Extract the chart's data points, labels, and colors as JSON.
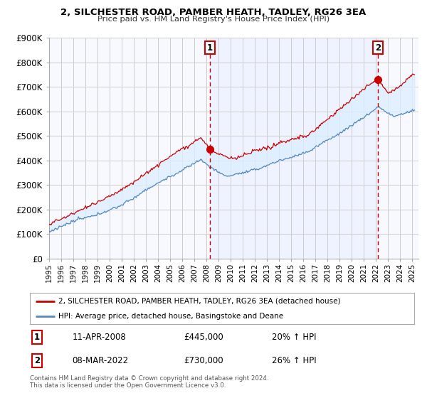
{
  "title": "2, SILCHESTER ROAD, PAMBER HEATH, TADLEY, RG26 3EA",
  "subtitle": "Price paid vs. HM Land Registry's House Price Index (HPI)",
  "ylabel_ticks": [
    "£0",
    "£100K",
    "£200K",
    "£300K",
    "£400K",
    "£500K",
    "£600K",
    "£700K",
    "£800K",
    "£900K"
  ],
  "ytick_vals": [
    0,
    100000,
    200000,
    300000,
    400000,
    500000,
    600000,
    700000,
    800000,
    900000
  ],
  "ylim": [
    0,
    900000
  ],
  "xlim_start": 1995.0,
  "xlim_end": 2025.5,
  "sale1_x": 2008.28,
  "sale1_y": 445000,
  "sale2_x": 2022.17,
  "sale2_y": 730000,
  "vline1_x": 2008.28,
  "vline2_x": 2022.17,
  "legend_line1": "2, SILCHESTER ROAD, PAMBER HEATH, TADLEY, RG26 3EA (detached house)",
  "legend_line2": "HPI: Average price, detached house, Basingstoke and Deane",
  "annotation1_box": "1",
  "annotation1_date": "11-APR-2008",
  "annotation1_price": "£445,000",
  "annotation1_hpi": "20% ↑ HPI",
  "annotation2_box": "2",
  "annotation2_date": "08-MAR-2022",
  "annotation2_price": "£730,000",
  "annotation2_hpi": "26% ↑ HPI",
  "footer": "Contains HM Land Registry data © Crown copyright and database right 2024.\nThis data is licensed under the Open Government Licence v3.0.",
  "line1_color": "#cc0000",
  "line2_color": "#5588bb",
  "fill_color": "#ddeeff",
  "vline_color": "#cc0000",
  "box_color": "#cc0000",
  "bg_color": "#ffffff",
  "grid_color": "#cccccc",
  "plot_bg": "#f8f8ff"
}
